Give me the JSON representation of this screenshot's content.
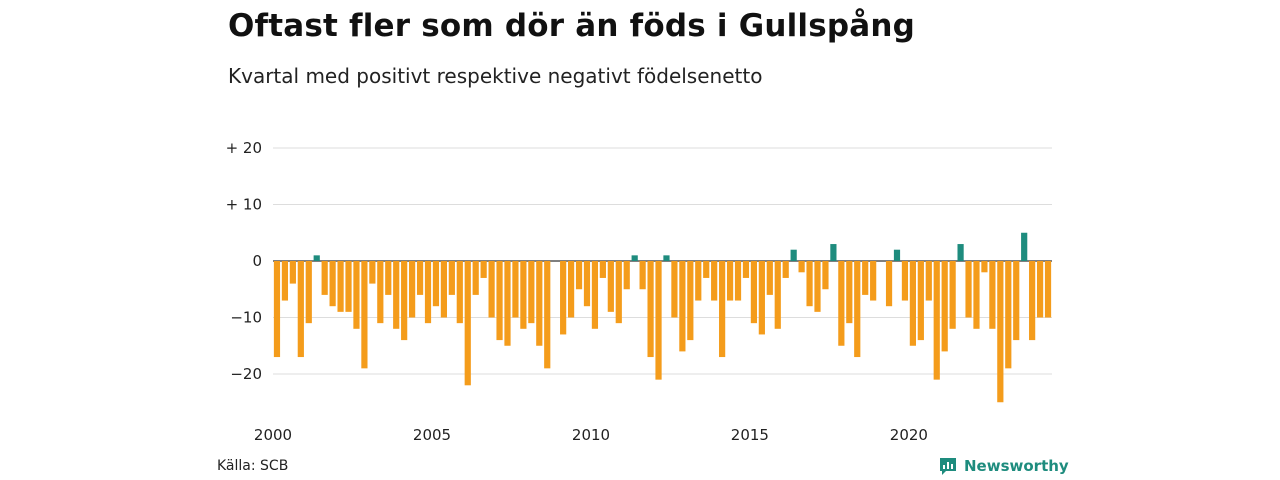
{
  "title": "Oftast fler som dör än föds i Gullspång",
  "subtitle": "Kvartal med positivt respektive negativt födelsenetto",
  "source": "Källa: SCB",
  "brand": {
    "name": "Newsworthy",
    "icon": "newsworthy-logo-icon"
  },
  "colors": {
    "positive": "#1e8c7e",
    "negative": "#f49c1b",
    "grid": "#dddddd"
  },
  "chart_data": {
    "type": "bar",
    "x_start": 2000,
    "periods_per_year": 4,
    "x_ticks": [
      "2000",
      "2005",
      "2010",
      "2015",
      "2020"
    ],
    "y_ticks": [
      "+ 20",
      "+ 10",
      "0",
      "−10",
      "−20"
    ],
    "y_tick_values": [
      20,
      10,
      0,
      -10,
      -20
    ],
    "ylim": [
      -25,
      20
    ],
    "grid": true,
    "values": [
      -17,
      -7,
      -4,
      -17,
      -11,
      1,
      -6,
      -8,
      -9,
      -9,
      -12,
      -19,
      -4,
      -11,
      -6,
      -12,
      -14,
      -10,
      -6,
      -11,
      -8,
      -10,
      -6,
      -11,
      -22,
      -6,
      -3,
      -10,
      -14,
      -15,
      -10,
      -12,
      -11,
      -15,
      -19,
      0,
      -13,
      -10,
      -5,
      -8,
      -12,
      -3,
      -9,
      -11,
      -5,
      1,
      -5,
      -17,
      -21,
      1,
      -10,
      -16,
      -14,
      -7,
      -3,
      -7,
      -17,
      -7,
      -7,
      -3,
      -11,
      -13,
      -6,
      -12,
      -3,
      2,
      -2,
      -8,
      -9,
      -5,
      3,
      -15,
      -11,
      -17,
      -6,
      -7,
      0,
      -8,
      2,
      -7,
      -15,
      -14,
      -7,
      -21,
      -16,
      -12,
      3,
      -10,
      -12,
      -2,
      -12,
      -25,
      -19,
      -14,
      5,
      -14,
      -10,
      -10
    ]
  }
}
